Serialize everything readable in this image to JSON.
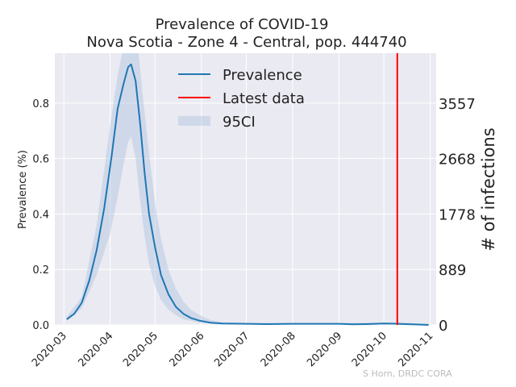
{
  "chart_data": {
    "type": "line",
    "title": "Prevalence of COVID-19",
    "subtitle": "Nova Scotia - Zone 4 - Central, pop. 444740",
    "ylabel": "Prevalence (%)",
    "ylabel_right": "# of infections",
    "xlim": [
      "2020-02-24",
      "2020-11-05"
    ],
    "ylim": [
      0.0,
      0.98
    ],
    "x_ticks": [
      "2020-03",
      "2020-04",
      "2020-05",
      "2020-06",
      "2020-07",
      "2020-08",
      "2020-09",
      "2020-10",
      "2020-11"
    ],
    "y_ticks": [
      "0.0",
      "0.2",
      "0.4",
      "0.6",
      "0.8"
    ],
    "y_ticks_right": [
      "0",
      "889",
      "1778",
      "2668",
      "3557"
    ],
    "grid": true,
    "legend_position": "top-center",
    "latest_data_date": "2020-10-10",
    "series": [
      {
        "name": "Prevalence",
        "color": "#1f77b4",
        "points": [
          [
            "2020-03-03",
            0.02
          ],
          [
            "2020-03-08",
            0.04
          ],
          [
            "2020-03-13",
            0.08
          ],
          [
            "2020-03-18",
            0.16
          ],
          [
            "2020-03-23",
            0.27
          ],
          [
            "2020-03-28",
            0.42
          ],
          [
            "2020-04-02",
            0.61
          ],
          [
            "2020-04-06",
            0.78
          ],
          [
            "2020-04-10",
            0.87
          ],
          [
            "2020-04-13",
            0.93
          ],
          [
            "2020-04-15",
            0.94
          ],
          [
            "2020-04-18",
            0.88
          ],
          [
            "2020-04-21",
            0.73
          ],
          [
            "2020-04-24",
            0.55
          ],
          [
            "2020-04-27",
            0.4
          ],
          [
            "2020-05-01",
            0.28
          ],
          [
            "2020-05-05",
            0.18
          ],
          [
            "2020-05-10",
            0.11
          ],
          [
            "2020-05-15",
            0.065
          ],
          [
            "2020-05-20",
            0.04
          ],
          [
            "2020-05-25",
            0.025
          ],
          [
            "2020-05-31",
            0.015
          ],
          [
            "2020-06-07",
            0.008
          ],
          [
            "2020-06-15",
            0.005
          ],
          [
            "2020-07-01",
            0.004
          ],
          [
            "2020-07-15",
            0.003
          ],
          [
            "2020-08-01",
            0.004
          ],
          [
            "2020-08-15",
            0.004
          ],
          [
            "2020-09-01",
            0.004
          ],
          [
            "2020-09-10",
            0.002
          ],
          [
            "2020-09-20",
            0.003
          ],
          [
            "2020-10-01",
            0.005
          ],
          [
            "2020-10-10",
            0.004
          ],
          [
            "2020-10-20",
            0.002
          ],
          [
            "2020-10-31",
            0.0
          ]
        ]
      },
      {
        "name": "95CI",
        "color": "#b0c4de",
        "lower": [
          [
            "2020-03-03",
            0.015
          ],
          [
            "2020-03-13",
            0.06
          ],
          [
            "2020-03-23",
            0.18
          ],
          [
            "2020-04-01",
            0.33
          ],
          [
            "2020-04-06",
            0.46
          ],
          [
            "2020-04-10",
            0.58
          ],
          [
            "2020-04-13",
            0.66
          ],
          [
            "2020-04-15",
            0.68
          ],
          [
            "2020-04-18",
            0.6
          ],
          [
            "2020-04-21",
            0.45
          ],
          [
            "2020-04-24",
            0.32
          ],
          [
            "2020-04-27",
            0.22
          ],
          [
            "2020-05-01",
            0.14
          ],
          [
            "2020-05-05",
            0.09
          ],
          [
            "2020-05-10",
            0.055
          ],
          [
            "2020-05-15",
            0.035
          ],
          [
            "2020-05-20",
            0.02
          ],
          [
            "2020-05-31",
            0.008
          ],
          [
            "2020-06-15",
            0.003
          ],
          [
            "2020-07-01",
            0.002
          ],
          [
            "2020-09-01",
            0.002
          ],
          [
            "2020-10-10",
            0.002
          ],
          [
            "2020-10-31",
            0.0
          ]
        ],
        "upper": [
          [
            "2020-03-03",
            0.03
          ],
          [
            "2020-03-13",
            0.1
          ],
          [
            "2020-03-23",
            0.36
          ],
          [
            "2020-04-01",
            0.72
          ],
          [
            "2020-04-06",
            0.9
          ],
          [
            "2020-04-09",
            0.98
          ],
          [
            "2020-04-20",
            0.98
          ],
          [
            "2020-04-23",
            0.82
          ],
          [
            "2020-04-27",
            0.62
          ],
          [
            "2020-05-01",
            0.44
          ],
          [
            "2020-05-05",
            0.31
          ],
          [
            "2020-05-10",
            0.2
          ],
          [
            "2020-05-15",
            0.13
          ],
          [
            "2020-05-20",
            0.085
          ],
          [
            "2020-05-25",
            0.055
          ],
          [
            "2020-05-31",
            0.035
          ],
          [
            "2020-06-07",
            0.018
          ],
          [
            "2020-06-15",
            0.01
          ],
          [
            "2020-07-01",
            0.007
          ],
          [
            "2020-08-01",
            0.007
          ],
          [
            "2020-09-01",
            0.007
          ],
          [
            "2020-10-10",
            0.009
          ],
          [
            "2020-10-31",
            0.004
          ]
        ]
      }
    ],
    "legend": {
      "prevalence": "Prevalence",
      "latest": "Latest data",
      "ci": "95CI"
    },
    "latest_color": "#ff0000",
    "credit": "S Horn, DRDC CORA"
  }
}
